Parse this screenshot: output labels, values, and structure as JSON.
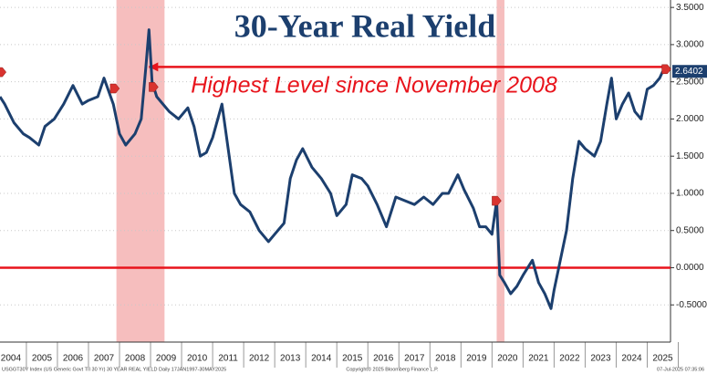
{
  "chart_data": {
    "type": "line",
    "title": "30-Year Real Yield",
    "annotation": "Highest Level since November 2008",
    "footer_left": "USGGT30Y Index (US Generic Govt TII 30 Yr) 30 YEAR REAL YIELD Daily 17JAN1997-30MAY2025",
    "footer_center": "Copyright© 2025 Bloomberg Finance L.P.",
    "footer_right": "07-Jul-2025 07:35:06",
    "xlim": [
      2004.15,
      2025.75
    ],
    "ylim": [
      -1.0,
      3.6
    ],
    "xticks": [
      {
        "value": 2004.5,
        "label": "2004"
      },
      {
        "value": 2005.5,
        "label": "2005"
      },
      {
        "value": 2006.5,
        "label": "2006"
      },
      {
        "value": 2007.5,
        "label": "2007"
      },
      {
        "value": 2008.5,
        "label": "2008"
      },
      {
        "value": 2009.5,
        "label": "2009"
      },
      {
        "value": 2010.5,
        "label": "2010"
      },
      {
        "value": 2011.5,
        "label": "2011"
      },
      {
        "value": 2012.5,
        "label": "2012"
      },
      {
        "value": 2013.5,
        "label": "2013"
      },
      {
        "value": 2014.5,
        "label": "2014"
      },
      {
        "value": 2015.5,
        "label": "2015"
      },
      {
        "value": 2016.5,
        "label": "2016"
      },
      {
        "value": 2017.5,
        "label": "2017"
      },
      {
        "value": 2018.5,
        "label": "2018"
      },
      {
        "value": 2019.5,
        "label": "2019"
      },
      {
        "value": 2020.5,
        "label": "2020"
      },
      {
        "value": 2021.5,
        "label": "2021"
      },
      {
        "value": 2022.5,
        "label": "2022"
      },
      {
        "value": 2023.5,
        "label": "2023"
      },
      {
        "value": 2024.5,
        "label": "2024"
      },
      {
        "value": 2025.5,
        "label": "2025"
      }
    ],
    "yticks": [
      {
        "value": 3.5,
        "label": "3.5000"
      },
      {
        "value": 3.0,
        "label": "3.0000"
      },
      {
        "value": 2.5,
        "label": "2.5000"
      },
      {
        "value": 2.0,
        "label": "2.0000"
      },
      {
        "value": 1.5,
        "label": "1.5000"
      },
      {
        "value": 1.0,
        "label": "1.0000"
      },
      {
        "value": 0.5,
        "label": "0.5000"
      },
      {
        "value": 0,
        "label": "0.0000"
      },
      {
        "value": -0.5,
        "label": "-0.5000"
      }
    ],
    "grid": true,
    "shaded_ranges": [
      [
        2007.9,
        2009.45
      ],
      [
        2020.15,
        2020.4
      ]
    ],
    "shade_color": "#f5b3b3",
    "reference_lines": [
      {
        "y": 0
      },
      {
        "y": 2.7,
        "x": [
          2008.95,
          2025.6
        ]
      }
    ],
    "reference_color": "#e8141c",
    "markers": [
      {
        "x": 2004.2,
        "y": 2.63
      },
      {
        "x": 2007.85,
        "y": 2.41
      },
      {
        "x": 2009.1,
        "y": 2.43
      },
      {
        "x": 2020.15,
        "y": 0.9
      },
      {
        "x": 2025.62,
        "y": 2.67
      }
    ],
    "series": [
      {
        "name": "30 YEAR REAL YIELD",
        "color": "#1c3f6e",
        "x": [
          2004.15,
          2004.3,
          2004.6,
          2004.9,
          2005.1,
          2005.4,
          2005.6,
          2005.9,
          2006.2,
          2006.5,
          2006.8,
          2007.0,
          2007.3,
          2007.5,
          2007.8,
          2008.0,
          2008.2,
          2008.5,
          2008.7,
          2008.85,
          2008.95,
          2009.05,
          2009.2,
          2009.4,
          2009.6,
          2009.9,
          2010.2,
          2010.4,
          2010.6,
          2010.8,
          2011.0,
          2011.3,
          2011.5,
          2011.7,
          2011.9,
          2012.2,
          2012.5,
          2012.8,
          2013.0,
          2013.3,
          2013.5,
          2013.7,
          2013.9,
          2014.2,
          2014.5,
          2014.8,
          2015.0,
          2015.3,
          2015.5,
          2015.8,
          2016.0,
          2016.3,
          2016.6,
          2016.9,
          2017.2,
          2017.5,
          2017.8,
          2018.1,
          2018.4,
          2018.6,
          2018.9,
          2019.1,
          2019.4,
          2019.6,
          2019.8,
          2020.0,
          2020.15,
          2020.25,
          2020.4,
          2020.6,
          2020.8,
          2021.0,
          2021.3,
          2021.5,
          2021.7,
          2021.9,
          2022.0,
          2022.2,
          2022.4,
          2022.6,
          2022.8,
          2023.0,
          2023.3,
          2023.5,
          2023.7,
          2023.85,
          2024.0,
          2024.2,
          2024.4,
          2024.6,
          2024.8,
          2025.0,
          2025.2,
          2025.4,
          2025.5
        ],
        "values": [
          2.3,
          2.2,
          1.95,
          1.8,
          1.75,
          1.65,
          1.9,
          2.0,
          2.2,
          2.45,
          2.2,
          2.25,
          2.3,
          2.55,
          2.2,
          1.8,
          1.65,
          1.8,
          2.0,
          2.7,
          3.2,
          2.5,
          2.3,
          2.2,
          2.1,
          2.0,
          2.15,
          1.9,
          1.5,
          1.55,
          1.75,
          2.2,
          1.6,
          1.0,
          0.85,
          0.75,
          0.5,
          0.35,
          0.45,
          0.6,
          1.2,
          1.45,
          1.6,
          1.35,
          1.2,
          1.0,
          0.7,
          0.85,
          1.25,
          1.2,
          1.1,
          0.85,
          0.55,
          0.95,
          0.9,
          0.85,
          0.95,
          0.85,
          1.0,
          1.0,
          1.25,
          1.05,
          0.8,
          0.55,
          0.55,
          0.45,
          0.9,
          -0.1,
          -0.2,
          -0.35,
          -0.25,
          -0.1,
          0.1,
          -0.2,
          -0.35,
          -0.55,
          -0.3,
          0.1,
          0.5,
          1.2,
          1.7,
          1.6,
          1.5,
          1.7,
          2.2,
          2.55,
          2.0,
          2.2,
          2.35,
          2.1,
          2.0,
          2.4,
          2.45,
          2.55,
          2.6402
        ]
      }
    ]
  }
}
